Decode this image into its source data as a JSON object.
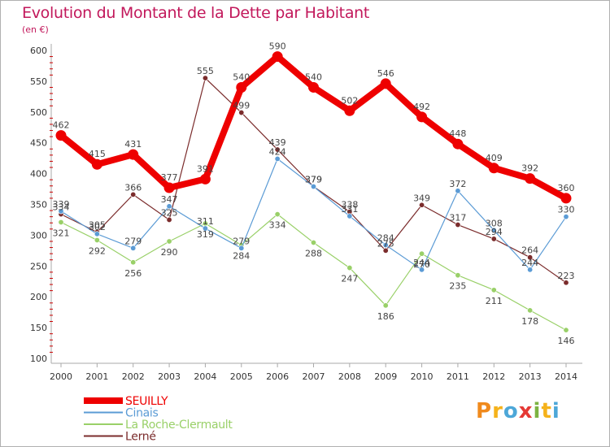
{
  "title": "Evolution du Montant de la Dette par Habitant",
  "subtitle": "(en €)",
  "logo": {
    "letters": [
      "P",
      "r",
      "o",
      "x",
      "i",
      "t",
      "i"
    ],
    "colors": [
      "#f08a1d",
      "#f5b21b",
      "#4da7d8",
      "#e53935",
      "#7cb342",
      "#f5b21b",
      "#4da7d8"
    ]
  },
  "chart_data": {
    "type": "line",
    "x": [
      "2000",
      "2001",
      "2002",
      "2003",
      "2004",
      "2005",
      "2006",
      "2007",
      "2008",
      "2009",
      "2010",
      "2011",
      "2012",
      "2013",
      "2014"
    ],
    "ylim": [
      100,
      600
    ],
    "yticks": [
      100,
      150,
      200,
      250,
      300,
      350,
      400,
      450,
      500,
      550,
      600
    ],
    "grid": false,
    "legend_position": "bottom-left",
    "series": [
      {
        "name": "SEUILLY",
        "color": "#ee0000",
        "width": 8,
        "values": [
          462,
          415,
          431,
          377,
          391,
          540,
          590,
          540,
          502,
          546,
          492,
          448,
          409,
          392,
          360
        ],
        "labels": [
          "462",
          "415",
          "431",
          "377",
          "391",
          "540",
          "590",
          "540",
          "502",
          "546",
          "492",
          "448",
          "409",
          "392",
          "360"
        ]
      },
      {
        "name": "Cinais",
        "color": "#5b9bd5",
        "width": 1.2,
        "values": [
          339,
          302,
          279,
          347,
          311,
          279,
          424,
          379,
          331,
          284,
          244,
          372,
          308,
          244,
          330
        ],
        "labels": [
          "339",
          "302",
          "279",
          "347",
          "311",
          "279",
          "424",
          "379",
          "331",
          "284",
          "244",
          "372",
          "308",
          "244",
          "330"
        ]
      },
      {
        "name": "La Roche-Clermault",
        "color": "#99d068",
        "width": 1.2,
        "values": [
          321,
          292,
          256,
          290,
          319,
          284,
          334,
          288,
          247,
          186,
          270,
          235,
          211,
          178,
          146
        ],
        "labels": [
          "321",
          "292",
          "256",
          "290",
          "319",
          "284",
          "334",
          "288",
          "247",
          "186",
          "270",
          "235",
          "211",
          "178",
          "146"
        ]
      },
      {
        "name": "Lerné",
        "color": "#7b2c2c",
        "width": 1.2,
        "values": [
          334,
          305,
          366,
          325,
          555,
          499,
          439,
          379,
          338,
          275,
          349,
          317,
          294,
          264,
          223
        ],
        "labels": [
          "334",
          "305",
          "366",
          "325",
          "555",
          "499",
          "439",
          "379",
          "338",
          "275",
          "349",
          "317",
          "294",
          "264",
          "223"
        ]
      }
    ]
  }
}
